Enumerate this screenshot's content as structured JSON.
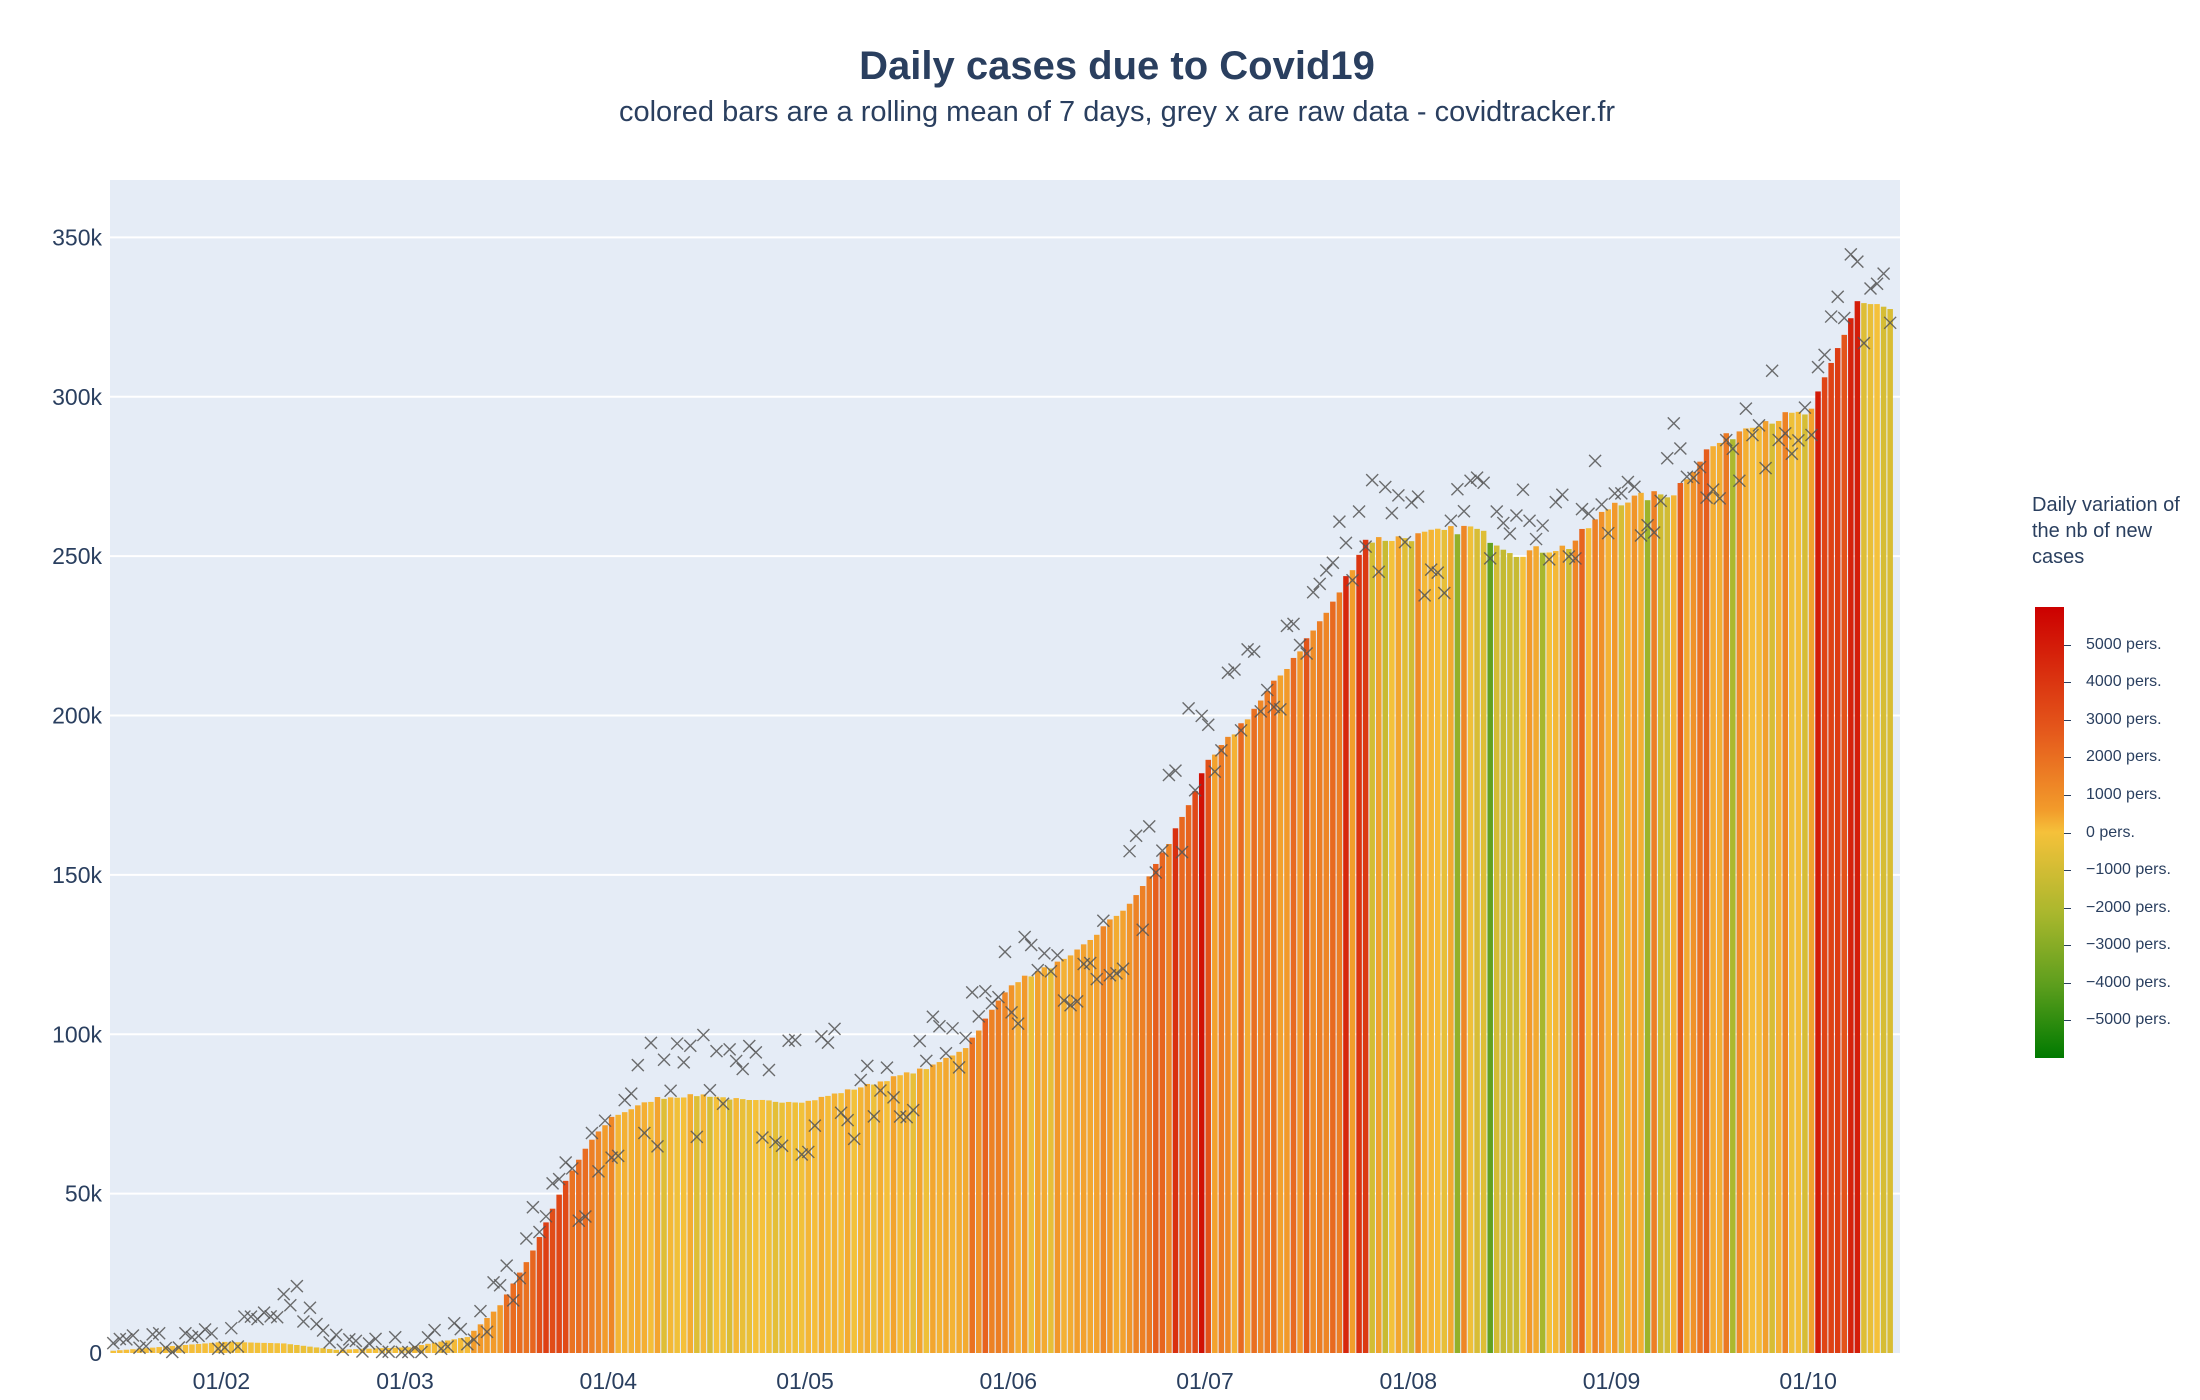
{
  "chart_data": {
    "type": "bar",
    "title": "Daily cases due to Covid19",
    "subtitle": "colored bars are a rolling mean of 7 days, grey x are raw data - covidtracker.fr",
    "xlabel": "",
    "ylabel": "",
    "x_start": "2021-01-15",
    "x_ticks": [
      "01/02",
      "01/03",
      "01/04",
      "01/05",
      "01/06",
      "01/07",
      "01/08",
      "01/09",
      "01/10"
    ],
    "x_tick_dates": [
      "2021-02-01",
      "2021-03-01",
      "2021-04-01",
      "2021-05-01",
      "2021-06-01",
      "2021-07-01",
      "2021-08-01",
      "2021-09-01",
      "2021-10-01"
    ],
    "y_ticks": [
      "0",
      "50k",
      "100k",
      "150k",
      "200k",
      "250k",
      "300k",
      "350k"
    ],
    "y_tick_values": [
      0,
      50000,
      100000,
      150000,
      200000,
      250000,
      300000,
      350000
    ],
    "ylim": [
      0,
      368000
    ],
    "grid": true,
    "rolling_mean_anchors": [
      [
        "2021-01-15",
        700
      ],
      [
        "2021-02-01",
        3500
      ],
      [
        "2021-02-10",
        3000
      ],
      [
        "2021-02-18",
        1000
      ],
      [
        "2021-03-01",
        1800
      ],
      [
        "2021-03-10",
        5000
      ],
      [
        "2021-03-15",
        15000
      ],
      [
        "2021-03-20",
        32000
      ],
      [
        "2021-03-25",
        54000
      ],
      [
        "2021-03-29",
        67000
      ],
      [
        "2021-04-01",
        74000
      ],
      [
        "2021-04-08",
        80000
      ],
      [
        "2021-04-15",
        81000
      ],
      [
        "2021-04-22",
        79000
      ],
      [
        "2021-05-01",
        79000
      ],
      [
        "2021-05-10",
        84000
      ],
      [
        "2021-05-20",
        90000
      ],
      [
        "2021-05-25",
        96000
      ],
      [
        "2021-06-01",
        116000
      ],
      [
        "2021-06-10",
        124000
      ],
      [
        "2021-06-20",
        143000
      ],
      [
        "2021-06-25",
        160000
      ],
      [
        "2021-07-01",
        185000
      ],
      [
        "2021-07-10",
        207000
      ],
      [
        "2021-07-20",
        235000
      ],
      [
        "2021-07-25",
        255000
      ],
      [
        "2021-08-01",
        256000
      ],
      [
        "2021-08-10",
        259000
      ],
      [
        "2021-08-17",
        251000
      ],
      [
        "2021-08-25",
        253000
      ],
      [
        "2021-09-01",
        267000
      ],
      [
        "2021-09-10",
        270000
      ],
      [
        "2021-09-15",
        283000
      ],
      [
        "2021-09-22",
        292000
      ],
      [
        "2021-10-01",
        295000
      ],
      [
        "2021-10-08",
        330000
      ],
      [
        "2021-10-13",
        327000
      ]
    ],
    "raw_data_anchors": [
      [
        "2021-01-15",
        1500
      ],
      [
        "2021-02-01",
        4000
      ],
      [
        "2021-02-12",
        15000
      ],
      [
        "2021-02-20",
        1500
      ],
      [
        "2021-03-01",
        2000
      ],
      [
        "2021-03-10",
        6000
      ],
      [
        "2021-03-20",
        33000
      ],
      [
        "2021-03-30",
        68000
      ],
      [
        "2021-04-10",
        86000
      ],
      [
        "2021-04-20",
        80000
      ],
      [
        "2021-05-01",
        80000
      ],
      [
        "2021-05-15",
        92000
      ],
      [
        "2021-05-28",
        95000
      ],
      [
        "2021-06-01",
        120000
      ],
      [
        "2021-06-15",
        130000
      ],
      [
        "2021-06-25",
        165000
      ],
      [
        "2021-07-01",
        200000
      ],
      [
        "2021-07-15",
        215000
      ],
      [
        "2021-07-25",
        260000
      ],
      [
        "2021-08-01",
        255000
      ],
      [
        "2021-08-15",
        262000
      ],
      [
        "2021-08-25",
        258000
      ],
      [
        "2021-09-05",
        270000
      ],
      [
        "2021-09-20",
        290000
      ],
      [
        "2021-10-01",
        300000
      ],
      [
        "2021-10-08",
        335000
      ],
      [
        "2021-10-13",
        320000
      ]
    ],
    "raw_spread": 20000,
    "colorbar_title": "Daily variation of the nb of new cases",
    "colorbar_ticks": [
      "5000 pers.",
      "4000 pers.",
      "3000 pers.",
      "2000 pers.",
      "1000 pers.",
      "0 pers.",
      "−1000 pers.",
      "−2000 pers.",
      "−3000 pers.",
      "−4000 pers.",
      "−5000 pers."
    ],
    "colorbar_tick_values": [
      5000,
      4000,
      3000,
      2000,
      1000,
      0,
      -1000,
      -2000,
      -3000,
      -4000,
      -5000
    ],
    "colorbar_range": [
      -6000,
      6000
    ],
    "colors": {
      "plot_bg": "#e5ecf6",
      "grid": "#ffffff",
      "text": "#2a3f5f",
      "marker_x": "#555555",
      "scale": [
        "#007a00",
        "#5c9e1d",
        "#a9b72d",
        "#f5c13a",
        "#f29b2b",
        "#e55a1c",
        "#cc0000"
      ]
    }
  }
}
